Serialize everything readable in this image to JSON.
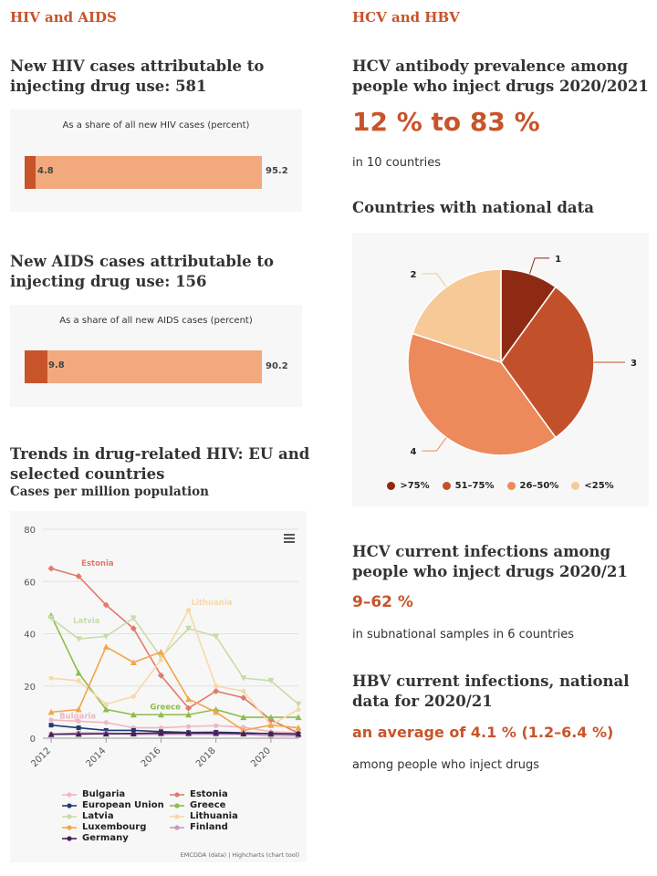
{
  "left": {
    "section_title": "HIV and AIDS",
    "hiv": {
      "heading": "New HIV cases attributable to injecting drug use: 581",
      "caption": "As a share of all new HIV cases (percent)",
      "small_value": "4.8",
      "large_value": "95.2"
    },
    "aids": {
      "heading": "New AIDS cases attributable to injecting drug use: 156",
      "caption": "As a share of all new AIDS cases (percent)",
      "small_value": "9.8",
      "large_value": "90.2"
    },
    "trends": {
      "heading": "Trends in drug-related HIV: EU and selected countries",
      "subheading": "Cases per million population",
      "credit": "EMCDDA (data) | Highcharts (chart tool)"
    }
  },
  "right": {
    "section_title": "HCV and HBV",
    "hcv_antibody": {
      "heading": "HCV antibody prevalence among people who inject drugs 2020/2021",
      "value": "12 % to 83 %",
      "note": "in 10 countries"
    },
    "pie_heading": "Countries with national data",
    "hcv_current": {
      "heading": "HCV current infections among people who inject drugs 2020/21",
      "value": "9–62 %",
      "note": "in subnational samples in 6 countries"
    },
    "hbv": {
      "heading": "HBV current infections, national data for 2020/21",
      "value": "an average of 4.1 % (1.2–6.4 %)",
      "note": "among people who inject drugs"
    }
  },
  "chart_data": [
    {
      "type": "bar",
      "title": "As a share of all new HIV cases (percent)",
      "stacked": true,
      "series": [
        {
          "values": [
            4.8
          ],
          "color": "#c8542a"
        },
        {
          "values": [
            95.2
          ],
          "color": "#f2a97d"
        }
      ]
    },
    {
      "type": "bar",
      "title": "As a share of all new AIDS cases (percent)",
      "stacked": true,
      "series": [
        {
          "values": [
            9.8
          ],
          "color": "#c8542a"
        },
        {
          "values": [
            90.2
          ],
          "color": "#f2a97d"
        }
      ]
    },
    {
      "type": "pie",
      "slices": [
        {
          "label": "1",
          "legend": ">75%",
          "value": 1,
          "color": "#8e2a13"
        },
        {
          "label": "3",
          "legend": "51–75%",
          "value": 3,
          "color": "#c2512b"
        },
        {
          "label": "4",
          "legend": "26–50%",
          "value": 4,
          "color": "#ec8a5c"
        },
        {
          "label": "2",
          "legend": "<25%",
          "value": 2,
          "color": "#f6c997"
        }
      ]
    },
    {
      "type": "line",
      "title": "Trends in drug-related HIV: EU and selected countries",
      "ylabel": "Cases per million population",
      "ylim": [
        0,
        80
      ],
      "yticks": [
        0,
        20,
        40,
        60,
        80
      ],
      "xlim": [
        2011.7,
        2021
      ],
      "xticks": [
        2012,
        2014,
        2016,
        2018,
        2020
      ],
      "grid": true,
      "series": [
        {
          "name": "Bulgaria",
          "color": "#f0b7c0",
          "marker": "circle",
          "x": [
            2012,
            2013,
            2014,
            2015,
            2016,
            2017,
            2018,
            2019,
            2020,
            2021
          ],
          "y": [
            7,
            6.5,
            6,
            4,
            4,
            4.5,
            4.8,
            4.2,
            2.5,
            2
          ]
        },
        {
          "name": "Estonia",
          "color": "#e3796a",
          "marker": "diamond",
          "x": [
            2012,
            2013,
            2014,
            2015,
            2016,
            2017,
            2018,
            2019,
            2020,
            2021
          ],
          "y": [
            65,
            62,
            51,
            42,
            24,
            11.5,
            18,
            15.5,
            7,
            2
          ]
        },
        {
          "name": "European Union",
          "color": "#1f3b73",
          "marker": "square",
          "x": [
            2012,
            2013,
            2014,
            2015,
            2016,
            2017,
            2018,
            2019,
            2020,
            2021
          ],
          "y": [
            5,
            4,
            3,
            3,
            2.5,
            2.2,
            2.3,
            2.1,
            1.7,
            1.6
          ]
        },
        {
          "name": "Greece",
          "color": "#8fbc48",
          "marker": "triangle",
          "x": [
            2012,
            2013,
            2014,
            2015,
            2016,
            2017,
            2018,
            2019,
            2020,
            2021
          ],
          "y": [
            47,
            25,
            11,
            9,
            9,
            9,
            11,
            8,
            8,
            8
          ]
        },
        {
          "name": "Latvia",
          "color": "#c7dcaa",
          "marker": "triangle-down",
          "x": [
            2012,
            2013,
            2014,
            2015,
            2016,
            2017,
            2018,
            2019,
            2020,
            2021
          ],
          "y": [
            46,
            38,
            39,
            46,
            31,
            42,
            39,
            23,
            22,
            13
          ]
        },
        {
          "name": "Lithuania",
          "color": "#f7d9a8",
          "marker": "circle",
          "x": [
            2012,
            2013,
            2014,
            2015,
            2016,
            2017,
            2018,
            2019,
            2020,
            2021
          ],
          "y": [
            23,
            22,
            13,
            16,
            30,
            49,
            20,
            18,
            5,
            11
          ]
        },
        {
          "name": "Luxembourg",
          "color": "#f3a64a",
          "marker": "triangle",
          "x": [
            2012,
            2013,
            2014,
            2015,
            2016,
            2017,
            2018,
            2019,
            2020,
            2021
          ],
          "y": [
            10,
            11,
            35,
            29,
            33,
            15,
            10,
            3,
            5,
            4
          ]
        },
        {
          "name": "Finland",
          "color": "#c49ac0",
          "marker": "square",
          "x": [
            2012,
            2013,
            2014,
            2015,
            2016,
            2017,
            2018,
            2019,
            2020,
            2021
          ],
          "y": [
            1.5,
            2,
            2,
            1.5,
            1.5,
            1.5,
            1.5,
            1.5,
            1,
            1
          ]
        },
        {
          "name": "Germany",
          "color": "#4a1c57",
          "marker": "triangle",
          "x": [
            2012,
            2013,
            2014,
            2015,
            2016,
            2017,
            2018,
            2019,
            2020,
            2021
          ],
          "y": [
            1.5,
            1.6,
            1.7,
            1.8,
            2,
            2,
            2,
            1.8,
            1.8,
            1.6
          ]
        }
      ],
      "annotations": [
        {
          "text": "Estonia",
          "series": "Estonia"
        },
        {
          "text": "Latvia",
          "series": "Latvia"
        },
        {
          "text": "Lithuania",
          "series": "Lithuania"
        },
        {
          "text": "Greece",
          "series": "Greece"
        },
        {
          "text": "Bulgaria",
          "series": "Bulgaria"
        }
      ]
    }
  ]
}
